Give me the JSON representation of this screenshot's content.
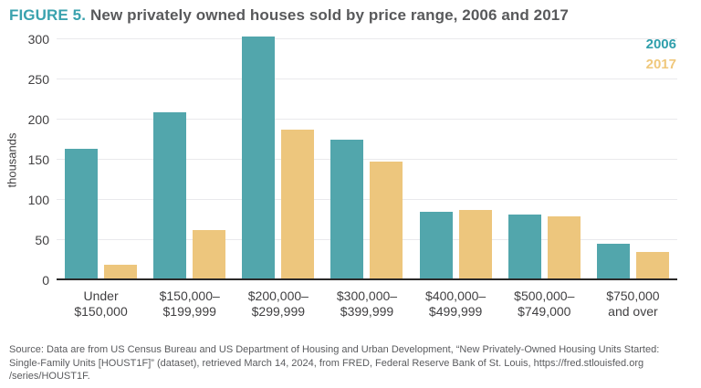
{
  "figure": {
    "label": "FIGURE 5.",
    "title": "New privately owned houses sold by price range, 2006 and 2017"
  },
  "chart_data": {
    "type": "bar",
    "title": "New privately owned houses sold by price range, 2006 and 2017",
    "xlabel": "",
    "ylabel": "thousands",
    "ylim": [
      0,
      300
    ],
    "yticks": [
      0,
      50,
      100,
      150,
      200,
      250,
      300
    ],
    "grid": true,
    "legend_position": "top-right",
    "categories": [
      [
        "Under",
        "$150,000"
      ],
      [
        "$150,000–",
        "$199,999"
      ],
      [
        "$200,000–",
        "$299,999"
      ],
      [
        "$300,000–",
        "$399,999"
      ],
      [
        "$400,000–",
        "$499,999"
      ],
      [
        "$500,000–",
        "$749,000"
      ],
      [
        "$750,000",
        "and over"
      ]
    ],
    "series": [
      {
        "name": "2006",
        "color": "#52a6ac",
        "legend_color": "#2f9fac",
        "values": [
          164,
          209,
          303,
          175,
          85,
          82,
          45
        ]
      },
      {
        "name": "2017",
        "color": "#edc67d",
        "legend_color": "#f0c87c",
        "values": [
          19,
          63,
          188,
          148,
          88,
          80,
          35
        ]
      }
    ]
  },
  "source": {
    "lines": [
      "Source: Data are from US Census Bureau and US Department of Housing and Urban Development, “New Privately-Owned Housing Units Started:",
      "Single-Family Units [HOUST1F]” (dataset), retrieved March 14, 2024, from FRED, Federal Reserve Bank of St. Louis, https://fred.stlouisfed.org",
      "/series/HOUST1F."
    ]
  },
  "colors": {
    "figure_label": "#3aa2ae",
    "title_text": "#58595b",
    "axis_text": "#414042",
    "gridline": "#e9e9ec",
    "baseline": "#2b2a2a",
    "source_text": "#5a5b5e",
    "series_2006": "#52a6ac",
    "series_2017": "#edc67d"
  }
}
